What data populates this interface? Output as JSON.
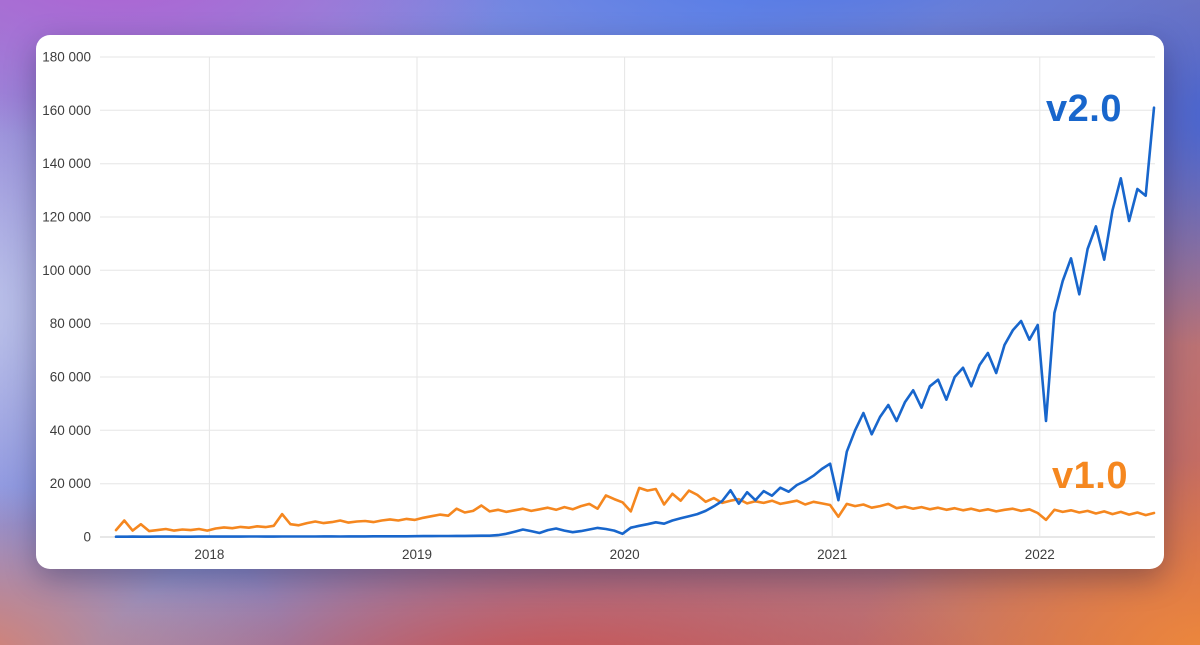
{
  "chart_data": {
    "type": "line",
    "grid": true,
    "legend_position": "inline-right-of-lines",
    "x_domain": [
      2017.55,
      2022.55
    ],
    "y_domain": [
      0,
      180000
    ],
    "x_start": 2017.55,
    "x_step": 0.04,
    "x_tick_values": [
      2018,
      2019,
      2020,
      2021,
      2022
    ],
    "x_tick_labels": [
      "2018",
      "2019",
      "2020",
      "2021",
      "2022"
    ],
    "y_tick_values": [
      0,
      20000,
      40000,
      60000,
      80000,
      100000,
      120000,
      140000,
      160000,
      180000
    ],
    "y_tick_labels": [
      "0",
      "20 000",
      "40 000",
      "60 000",
      "80 000",
      "100 000",
      "120 000",
      "140 000",
      "160 000",
      "180 000"
    ],
    "series": [
      {
        "name": "v1.0",
        "color": "#f5871f",
        "values": [
          2600,
          6200,
          2400,
          4800,
          2200,
          2600,
          3000,
          2400,
          2800,
          2600,
          3000,
          2400,
          3200,
          3600,
          3300,
          3800,
          3500,
          4000,
          3700,
          4200,
          8600,
          4800,
          4400,
          5200,
          5800,
          5200,
          5600,
          6200,
          5400,
          5800,
          6000,
          5600,
          6200,
          6600,
          6200,
          6800,
          6400,
          7200,
          7800,
          8400,
          8000,
          10600,
          9200,
          9800,
          11800,
          9600,
          10200,
          9400,
          10000,
          10600,
          9800,
          10400,
          11000,
          10200,
          11200,
          10400,
          11600,
          12400,
          10600,
          15600,
          14200,
          13000,
          9600,
          18400,
          17400,
          18000,
          12200,
          16200,
          13600,
          17400,
          15800,
          13200,
          14600,
          12800,
          13600,
          14200,
          12600,
          13400,
          12800,
          13600,
          12400,
          13000,
          13600,
          12200,
          13200,
          12600,
          12000,
          7600,
          12400,
          11600,
          12200,
          11000,
          11600,
          12400,
          10800,
          11400,
          10600,
          11200,
          10400,
          11000,
          10200,
          10800,
          10000,
          10600,
          9800,
          10400,
          9600,
          10200,
          10600,
          9800,
          10400,
          9000,
          6400,
          10200,
          9400,
          10000,
          9200,
          9800,
          8800,
          9600,
          8600,
          9400,
          8400,
          9200,
          8200,
          9000
        ]
      },
      {
        "name": "v2.0",
        "color": "#1866cc",
        "values": [
          100,
          120,
          150,
          130,
          110,
          140,
          160,
          150,
          130,
          120,
          150,
          170,
          160,
          150,
          140,
          160,
          180,
          170,
          150,
          160,
          180,
          200,
          190,
          180,
          200,
          220,
          210,
          200,
          220,
          240,
          230,
          250,
          260,
          250,
          270,
          280,
          300,
          320,
          340,
          360,
          380,
          400,
          420,
          450,
          480,
          500,
          700,
          1200,
          2000,
          2800,
          2200,
          1500,
          2600,
          3200,
          2400,
          1800,
          2200,
          2800,
          3400,
          3000,
          2400,
          1200,
          3500,
          4200,
          4800,
          5500,
          5000,
          6200,
          7000,
          7800,
          8600,
          9800,
          11500,
          13500,
          17500,
          12500,
          16800,
          13800,
          17200,
          15500,
          18500,
          17000,
          19500,
          21000,
          23000,
          25500,
          27500,
          13800,
          32000,
          40000,
          46500,
          38500,
          45000,
          49500,
          43500,
          50500,
          55000,
          48500,
          56500,
          59000,
          51500,
          60000,
          63500,
          56500,
          64500,
          69000,
          61500,
          72000,
          77500,
          81000,
          74000,
          79500,
          43500,
          84000,
          96000,
          104500,
          91000,
          108000,
          116500,
          104000,
          122500,
          134500,
          118500,
          130500,
          128000,
          161000
        ]
      }
    ]
  }
}
